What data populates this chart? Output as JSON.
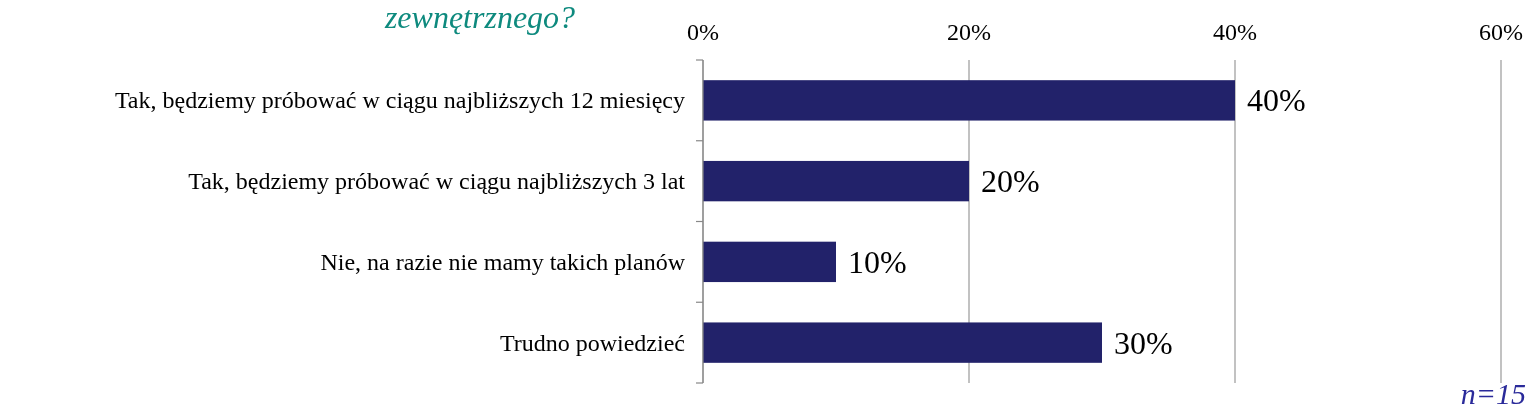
{
  "chart_data": {
    "type": "bar",
    "orientation": "horizontal",
    "title": "zewnętrznego?",
    "categories": [
      "Tak, będziemy próbować w ciągu najbliższych 12 miesięcy",
      "Tak, będziemy próbować w ciągu najbliższych 3 lat",
      "Nie, na razie nie mamy takich planów",
      "Trudno powiedzieć"
    ],
    "values": [
      40,
      20,
      10,
      30
    ],
    "color": "#22226a",
    "xlim": [
      0,
      60
    ],
    "xticks": [
      {
        "value": 0,
        "label": "0%"
      },
      {
        "value": 20,
        "label": "20%"
      },
      {
        "value": 40,
        "label": "40%"
      },
      {
        "value": 60,
        "label": "60%"
      }
    ],
    "grid": "x",
    "data_labels": true,
    "value_labels": [
      "40%",
      "20%",
      "10%",
      "30%"
    ],
    "annotations": [
      "n=15"
    ]
  }
}
